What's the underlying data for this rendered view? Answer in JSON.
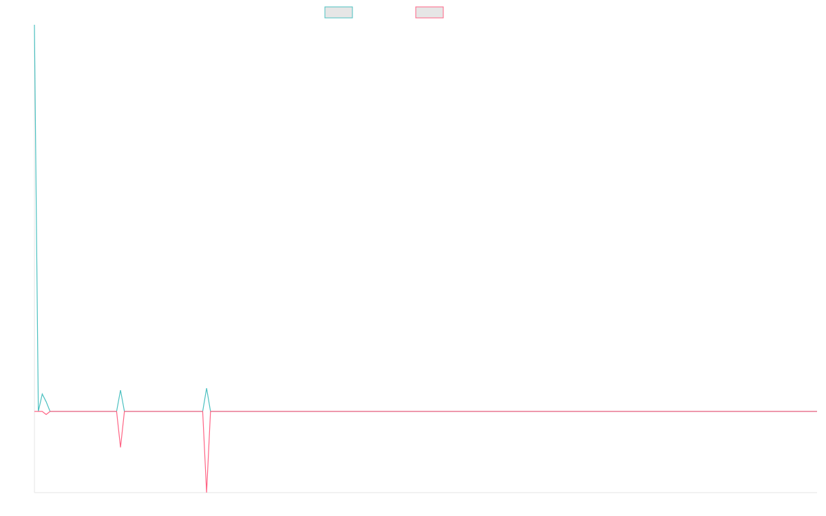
{
  "chart_data": {
    "type": "line",
    "title": "",
    "xlabel": "",
    "ylabel": "",
    "legend_position": "top-center",
    "grid": false,
    "x": [
      0,
      1,
      2,
      3,
      4,
      5,
      6,
      7,
      8,
      9,
      10,
      11,
      12,
      13,
      14,
      15,
      16,
      17,
      18,
      19,
      20,
      21,
      22,
      23,
      24,
      25,
      26,
      27,
      28,
      29,
      30,
      31,
      32,
      33,
      34,
      35,
      36,
      37,
      38,
      39,
      40,
      41,
      42,
      43,
      44,
      45,
      46,
      47,
      48,
      49,
      50,
      51,
      52,
      53,
      54,
      55,
      56,
      57,
      58,
      59,
      60,
      61,
      62,
      63,
      64,
      65,
      66,
      67,
      68,
      69,
      70,
      71,
      72,
      73,
      74,
      75,
      76,
      77,
      78,
      79,
      80,
      81,
      82,
      83,
      84,
      85,
      86,
      87,
      88,
      89,
      90,
      91,
      92,
      93,
      94,
      95,
      96,
      97,
      98,
      99,
      100,
      101,
      102,
      103,
      104,
      105,
      106,
      107,
      108,
      109,
      110,
      111,
      112,
      113,
      114,
      115,
      116,
      117,
      118,
      119,
      120,
      121,
      122,
      123,
      124,
      125,
      126,
      127,
      128,
      129,
      130,
      131,
      132,
      133,
      134,
      135,
      136,
      137,
      138,
      139,
      140,
      141,
      142,
      143,
      144,
      145,
      146,
      147,
      148,
      149,
      150,
      151,
      152,
      153,
      154,
      155,
      156,
      157,
      158,
      159,
      160,
      161,
      162,
      163,
      164,
      165,
      166,
      167,
      168,
      169,
      170,
      171,
      172,
      173,
      174,
      175,
      176,
      177,
      178,
      179,
      180,
      181,
      182,
      183,
      184,
      185,
      186,
      187,
      188,
      189,
      190,
      191,
      192,
      193,
      194,
      195,
      196,
      197,
      198,
      199,
      200
    ],
    "ylim": [
      -21,
      100
    ],
    "series": [
      {
        "name": "",
        "color": "#4bc0c0",
        "values": {
          "0": 100,
          "1": 0,
          "2": 4.5,
          "3": 2.5,
          "4": 0,
          "21": 0,
          "22": 5.5,
          "23": 0,
          "43": 0,
          "44": 6,
          "45": 0,
          "200": 0
        }
      },
      {
        "name": "",
        "color": "#ff6384",
        "values": {
          "0": 0,
          "2": 0,
          "3": -0.8,
          "4": 0,
          "21": 0,
          "22": -9.3,
          "23": 0,
          "43": 0,
          "44": -21,
          "45": 0,
          "200": 0
        }
      }
    ]
  }
}
